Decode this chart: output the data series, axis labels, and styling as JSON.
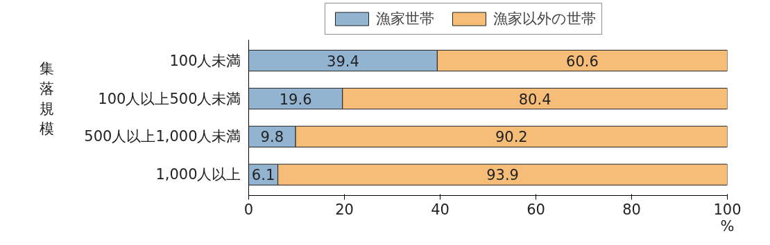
{
  "chart_data": {
    "type": "bar",
    "orientation": "horizontal",
    "stacked": true,
    "categories": [
      "100人未満",
      "100人以上500人未満",
      "500人以上1,000人未満",
      "1,000人以上"
    ],
    "series": [
      {
        "name": "漁家世帯",
        "color": "#92b4d0",
        "values": [
          39.4,
          19.6,
          9.8,
          6.1
        ]
      },
      {
        "name": "漁家以外の世帯",
        "color": "#f5bd78",
        "values": [
          60.6,
          80.4,
          90.2,
          93.9
        ]
      }
    ],
    "xlim": [
      0,
      100
    ],
    "xticks": [
      0,
      20,
      40,
      60,
      80,
      100
    ],
    "xlabel": "%",
    "ylabel": "集落規模",
    "data_labels": true,
    "legend": "top",
    "grid": false
  }
}
